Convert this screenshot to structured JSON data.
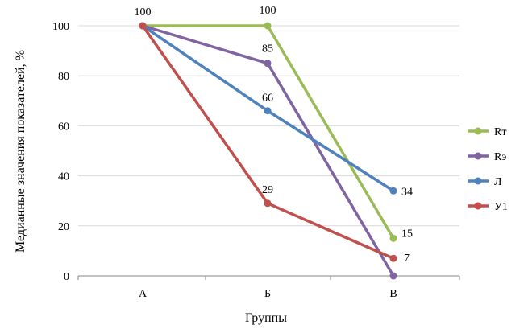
{
  "chart_data": {
    "type": "line",
    "categories": [
      "А",
      "Б",
      "В"
    ],
    "xlabel": "Группы",
    "ylabel": "Медианные значения показателей, %",
    "ylim": [
      0,
      100
    ],
    "yticks": [
      0,
      20,
      40,
      60,
      80,
      100
    ],
    "grid": "horizontal",
    "legend": "right",
    "series": [
      {
        "name": "Rт",
        "color": "#9BBB59",
        "values": [
          100,
          100,
          15
        ],
        "labels": [
          "",
          "100",
          "15"
        ]
      },
      {
        "name": "Rэ",
        "color": "#8064A2",
        "values": [
          100,
          85,
          0
        ],
        "labels": [
          "",
          "85",
          ""
        ]
      },
      {
        "name": "Л",
        "color": "#4F81BD",
        "values": [
          100,
          66,
          34
        ],
        "labels": [
          "",
          "66",
          "34"
        ]
      },
      {
        "name": "У1",
        "color": "#C0504D",
        "values": [
          100,
          29,
          7
        ],
        "labels": [
          "100",
          "29",
          "7"
        ]
      }
    ]
  }
}
